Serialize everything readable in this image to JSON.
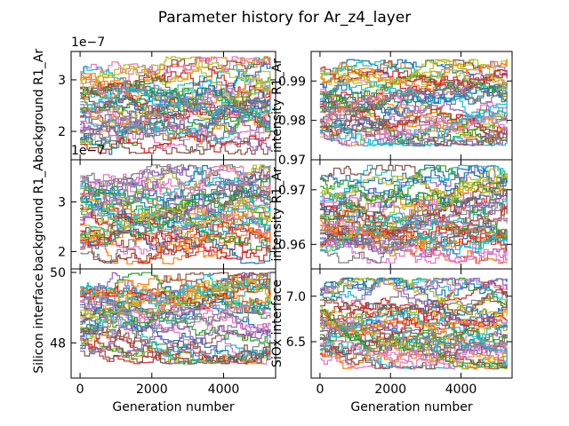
{
  "figure": {
    "title": "Parameter history for Ar_z4_layer"
  },
  "chart_data": [
    {
      "type": "line",
      "panel": "top-left",
      "ylabel": "background R1_Ar",
      "xlabel": "",
      "offset_label": "1e−7",
      "xlim": [
        -250,
        5450
      ],
      "ylim": [
        1.45,
        3.55
      ],
      "yticks": [
        2,
        3
      ],
      "ytick_labels": [
        "2",
        "3"
      ],
      "series_count": 40,
      "trace_range": [
        1.55,
        3.45
      ],
      "x_range": [
        0,
        5300
      ]
    },
    {
      "type": "line",
      "panel": "top-right",
      "ylabel": "intensity R1_Ar",
      "xlabel": "",
      "xlim": [
        -250,
        5450
      ],
      "ylim": [
        0.97,
        0.9975
      ],
      "yticks": [
        0.97,
        0.98,
        0.99
      ],
      "ytick_labels": [
        "0.97",
        "0.98",
        "0.99"
      ],
      "series_count": 40,
      "trace_range": [
        0.9735,
        0.9955
      ],
      "x_range": [
        0,
        5300
      ]
    },
    {
      "type": "line",
      "panel": "middle-left",
      "ylabel": "background R1_Ar",
      "xlabel": "",
      "offset_label": "1e−7",
      "xlim": [
        -250,
        5450
      ],
      "ylim": [
        1.65,
        3.85
      ],
      "yticks": [
        2,
        3
      ],
      "ytick_labels": [
        "2",
        "3"
      ],
      "series_count": 40,
      "trace_range": [
        1.75,
        3.75
      ],
      "x_range": [
        0,
        5300
      ]
    },
    {
      "type": "line",
      "panel": "middle-right",
      "ylabel": "intensity R1_Ar",
      "xlabel": "",
      "xlim": [
        -250,
        5450
      ],
      "ylim": [
        0.9555,
        0.9755
      ],
      "yticks": [
        0.96,
        0.97
      ],
      "ytick_labels": [
        "0.96",
        "0.97"
      ],
      "series_count": 40,
      "trace_range": [
        0.9565,
        0.9745
      ],
      "x_range": [
        0,
        5300
      ]
    },
    {
      "type": "line",
      "panel": "bottom-left",
      "ylabel": "Silicon interface",
      "xlabel": "Generation number",
      "xlim": [
        -250,
        5450
      ],
      "ylim": [
        47.0,
        50.1
      ],
      "yticks": [
        48,
        50
      ],
      "ytick_labels": [
        "48",
        "50"
      ],
      "xticks": [
        0,
        2000,
        4000
      ],
      "xtick_labels": [
        "0",
        "2000",
        "4000"
      ],
      "series_count": 40,
      "trace_range": [
        47.4,
        50.0
      ],
      "x_range": [
        0,
        5300
      ]
    },
    {
      "type": "line",
      "panel": "bottom-right",
      "ylabel": "SiOx interface",
      "xlabel": "Generation number",
      "xlim": [
        -250,
        5450
      ],
      "ylim": [
        6.1,
        7.3
      ],
      "yticks": [
        6.5,
        7.0
      ],
      "ytick_labels": [
        "6.5",
        "7.0"
      ],
      "xticks": [
        0,
        2000,
        4000
      ],
      "xtick_labels": [
        "0",
        "2000",
        "4000"
      ],
      "series_count": 40,
      "trace_range": [
        6.2,
        7.2
      ],
      "x_range": [
        0,
        5300
      ]
    }
  ],
  "colors": [
    "#1f77b4",
    "#ff7f0e",
    "#2ca02c",
    "#d62728",
    "#9467bd",
    "#8c564b",
    "#e377c2",
    "#7f7f7f",
    "#bcbd22",
    "#17becf"
  ]
}
